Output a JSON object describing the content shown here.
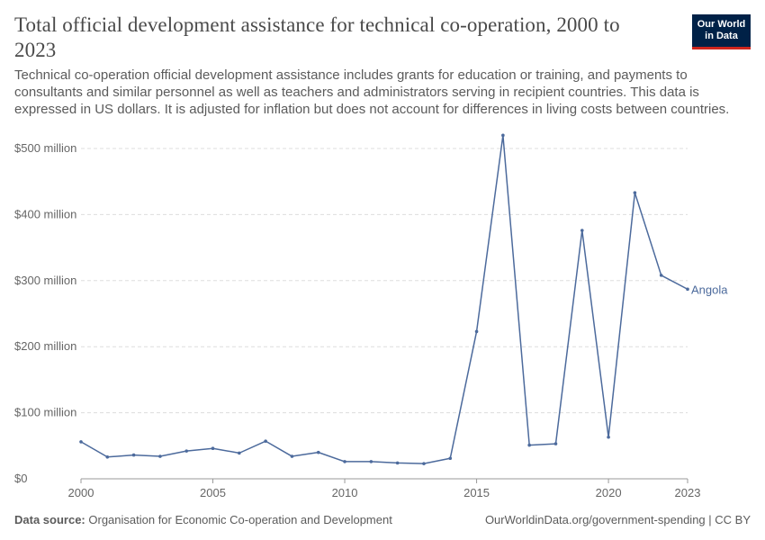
{
  "header": {
    "title": "Total official development assistance for technical co-operation, 2000 to 2023",
    "subtitle": "Technical co-operation official development assistance includes grants for education or training, and payments to consultants and similar personnel as well as teachers and administrators serving in recipient countries. This data is expressed in US dollars. It is adjusted for inflation but does not account for differences in living costs between countries."
  },
  "logo": {
    "line1": "Our World",
    "line2": "in Data"
  },
  "footer": {
    "source_label": "Data source:",
    "source_text": "Organisation for Economic Co-operation and Development",
    "link_text": "OurWorldinData.org/government-spending | CC BY"
  },
  "colors": {
    "series": "#4c6a9c",
    "grid": "#dddddd",
    "axis": "#999999"
  },
  "chart_data": {
    "type": "line",
    "x": [
      2000,
      2001,
      2002,
      2003,
      2004,
      2005,
      2006,
      2007,
      2008,
      2009,
      2010,
      2011,
      2012,
      2013,
      2014,
      2015,
      2016,
      2017,
      2018,
      2019,
      2020,
      2021,
      2022,
      2023
    ],
    "series": [
      {
        "name": "Angola",
        "values": [
          56,
          33,
          36,
          34,
          42,
          46,
          39,
          57,
          34,
          40,
          26,
          26,
          24,
          23,
          31,
          223,
          520,
          51,
          53,
          376,
          63,
          433,
          308,
          287
        ]
      }
    ],
    "ylim": [
      0,
      500
    ],
    "y_ticks": [
      0,
      100,
      200,
      300,
      400,
      500
    ],
    "y_tick_labels": [
      "$0",
      "$100 million",
      "$200 million",
      "$300 million",
      "$400 million",
      "$500 million"
    ],
    "x_ticks": [
      2000,
      2005,
      2010,
      2015,
      2020,
      2023
    ],
    "x_tick_labels": [
      "2000",
      "2005",
      "2010",
      "2015",
      "2020",
      "2023"
    ],
    "grid": true,
    "xlabel": "",
    "ylabel": ""
  }
}
